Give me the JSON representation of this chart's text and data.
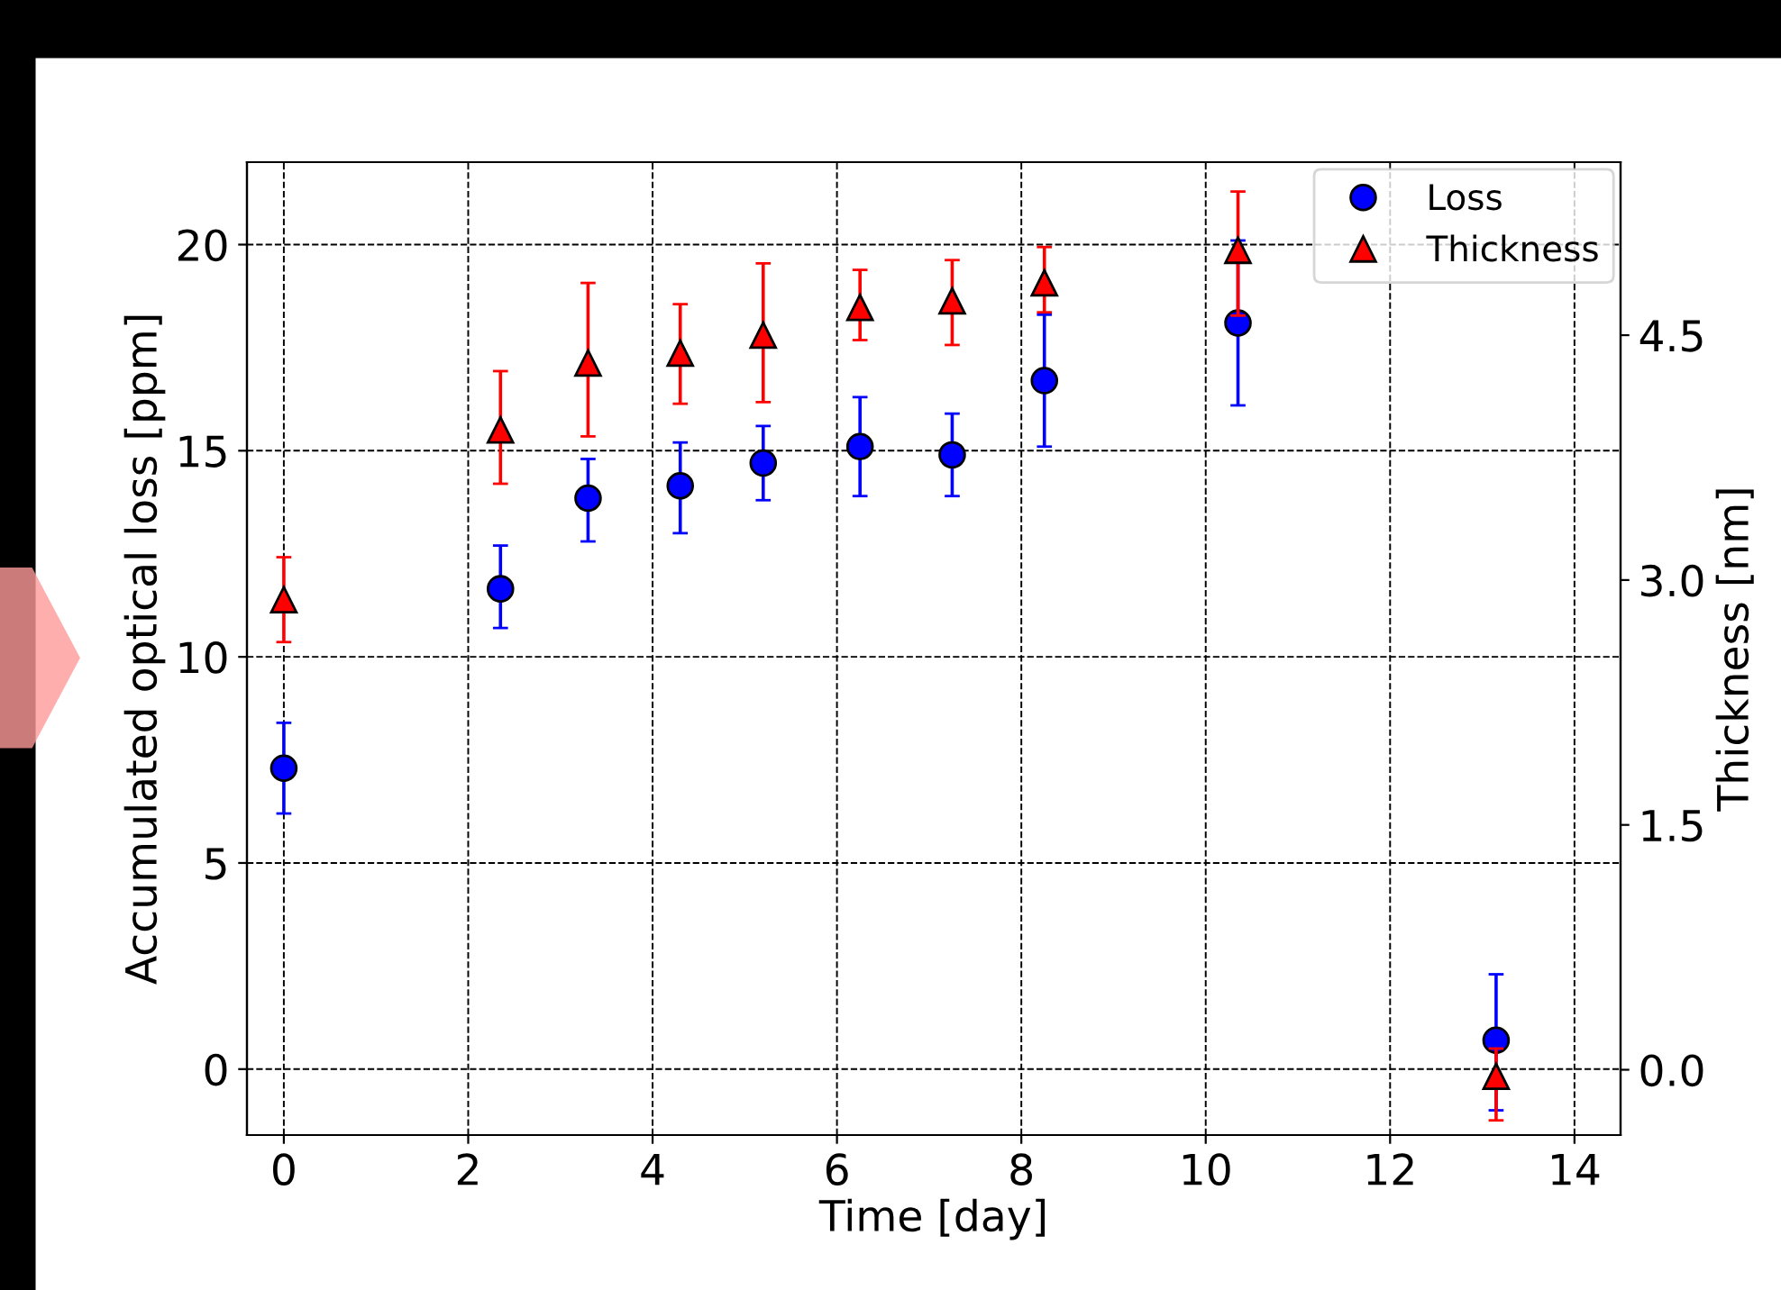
{
  "chart_data": {
    "type": "scatter",
    "xlabel": "Time [day]",
    "ylabel": "Accumulated optical loss [ppm]",
    "y2label": "Thickness [nm]",
    "xlim": [
      -0.4,
      14.5
    ],
    "xticks": [
      0,
      2,
      4,
      6,
      8,
      10,
      12,
      14
    ],
    "ylim": [
      -1.6,
      22
    ],
    "yticks": [
      0,
      5,
      10,
      15,
      20
    ],
    "y2lim": [
      -0.4,
      5.56
    ],
    "y2ticks": [
      {
        "value": 0,
        "label": "0.0"
      },
      {
        "value": 1.5,
        "label": "1.5"
      },
      {
        "value": 3,
        "label": "3.0"
      },
      {
        "value": 4.5,
        "label": "4.5"
      }
    ],
    "grid": true,
    "legend": "top right",
    "series": [
      {
        "name": "Loss",
        "color": "#0000ff",
        "marker": "circle",
        "x": [
          0,
          2.35,
          3.3,
          4.3,
          5.2,
          6.25,
          7.25,
          8.25,
          10.35,
          13.15
        ],
        "values": [
          7.3,
          11.65,
          13.85,
          14.15,
          14.7,
          15.1,
          14.9,
          16.7,
          18.1,
          0.7
        ],
        "errors": [
          [
            6.2,
            8.4
          ],
          [
            10.7,
            12.7
          ],
          [
            12.8,
            14.8
          ],
          [
            13.0,
            15.2
          ],
          [
            13.8,
            15.6
          ],
          [
            13.9,
            16.3
          ],
          [
            13.9,
            15.9
          ],
          [
            15.1,
            18.3
          ],
          [
            16.1,
            20.1
          ],
          [
            -1.0,
            2.3
          ]
        ]
      },
      {
        "name": "Thickness",
        "color": "#ff0000",
        "marker": "triangle",
        "axis": "y2",
        "x": [
          0,
          2.35,
          3.3,
          4.3,
          5.2,
          6.25,
          7.25,
          8.25,
          10.35,
          13.15
        ],
        "values": [
          2.88,
          3.92,
          4.33,
          4.39,
          4.5,
          4.67,
          4.71,
          4.82,
          5.02,
          -0.04
        ],
        "errors": [
          [
            2.62,
            3.14
          ],
          [
            3.59,
            4.28
          ],
          [
            3.88,
            4.82
          ],
          [
            4.08,
            4.69
          ],
          [
            4.09,
            4.94
          ],
          [
            4.47,
            4.9
          ],
          [
            4.44,
            4.96
          ],
          [
            4.64,
            5.04
          ],
          [
            4.62,
            5.38
          ],
          [
            -0.31,
            0.13
          ]
        ]
      }
    ]
  }
}
